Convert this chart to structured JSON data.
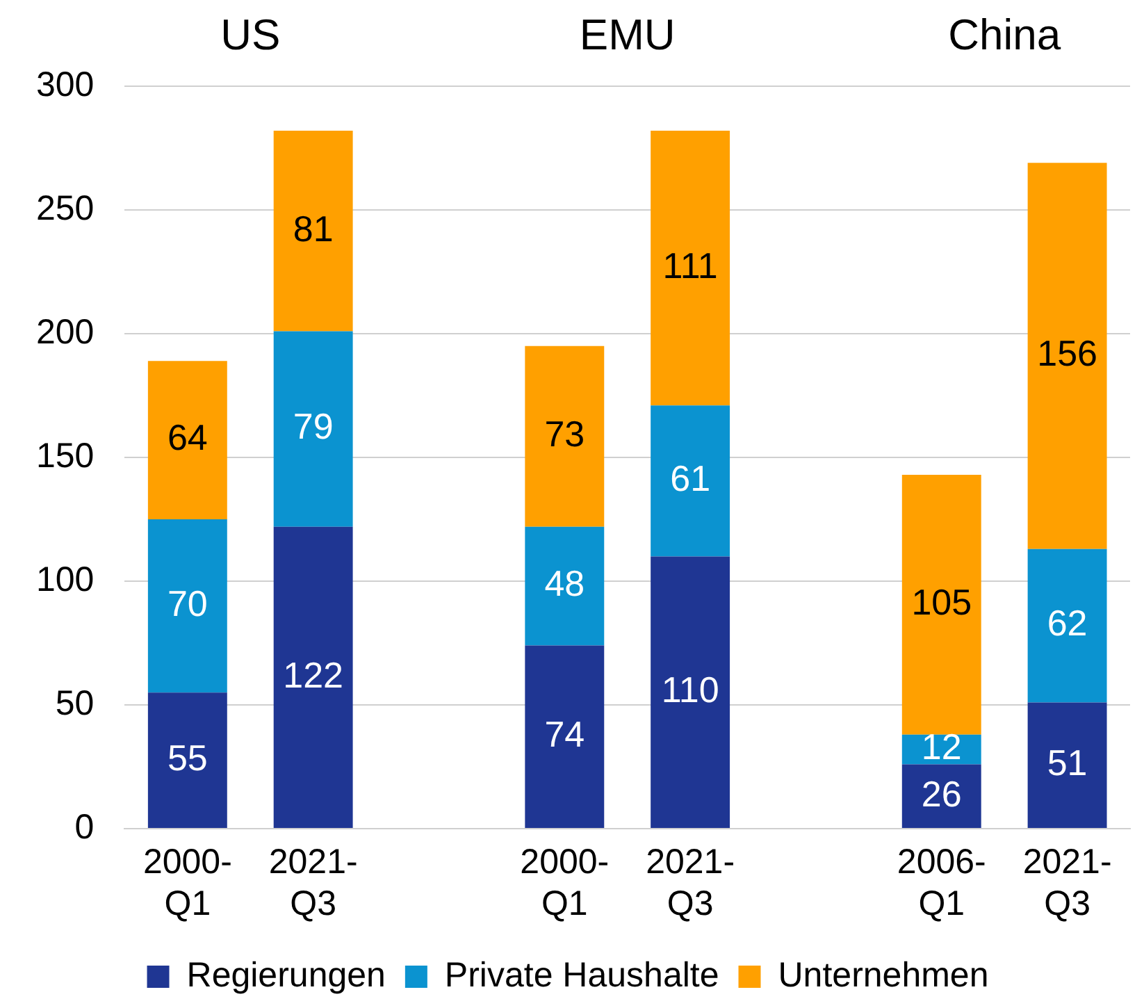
{
  "chart_data": {
    "type": "bar",
    "stacked": true,
    "categories": [
      "2000-Q1",
      "2021-Q3",
      null,
      "2000-Q1",
      "2021-Q3",
      null,
      "2006-Q1",
      "2021-Q3"
    ],
    "series": [
      {
        "name": "Regierungen",
        "color": "#1f3693",
        "values": [
          55,
          122,
          null,
          74,
          110,
          null,
          26,
          51
        ]
      },
      {
        "name": "Private Haushalte",
        "color": "#0b93d0",
        "values": [
          70,
          79,
          null,
          48,
          61,
          null,
          12,
          62
        ]
      },
      {
        "name": "Unternehmen",
        "color": "#ffa000",
        "values": [
          64,
          81,
          null,
          73,
          111,
          null,
          105,
          156
        ]
      }
    ],
    "annotations": [
      "US",
      "EMU",
      "China"
    ],
    "ylim": [
      0,
      300
    ],
    "yticks": [
      0,
      50,
      100,
      150,
      200,
      250,
      300
    ],
    "grid": "y",
    "legend": "bottom",
    "data_labels": true
  }
}
